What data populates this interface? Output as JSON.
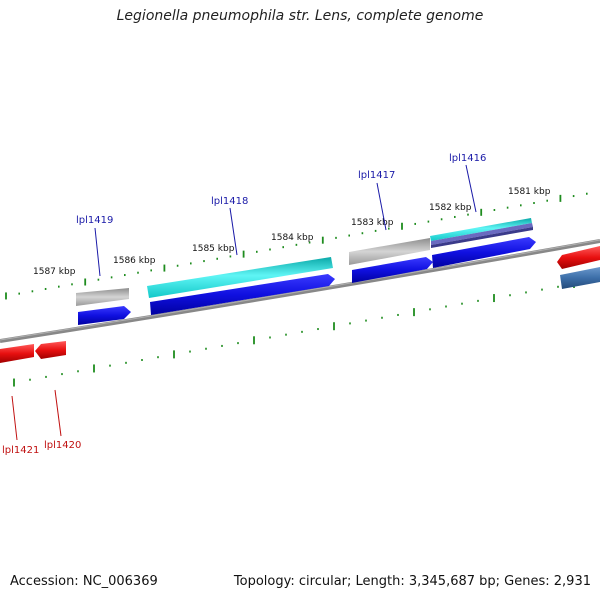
{
  "title": "Legionella pneumophila str. Lens, complete genome",
  "footer": {
    "accession": "Accession: NC_006369",
    "summary": "Topology: circular; Length: 3,345,687 bp; Genes: 2,931"
  },
  "colors": {
    "backbone": "#8a8a8a",
    "tick": "#1e8c1e",
    "forward_label": "#1a1aa8",
    "reverse_label": "#c01010",
    "cds_forward": "#1010e0",
    "cds_reverse": "#e81010",
    "gene_gray": "#b8b8b8",
    "gene_cyan": "#1ee0e0",
    "gene_steel": "#4a7ab0"
  },
  "scale_labels": [
    "1587 kbp",
    "1586 kbp",
    "1585 kbp",
    "1584 kbp",
    "1583 kbp",
    "1582 kbp",
    "1581 kbp"
  ],
  "forward_genes": [
    "lpl1419",
    "lpl1418",
    "lpl1417",
    "lpl1416"
  ],
  "reverse_genes": [
    "lpl1421",
    "lpl1420"
  ]
}
